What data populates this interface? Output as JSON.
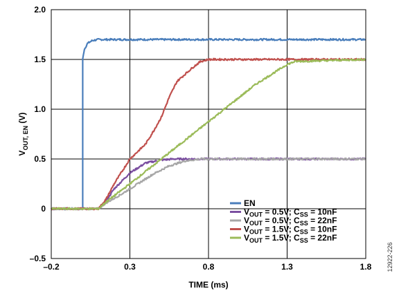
{
  "chart_data": {
    "type": "line",
    "xlabel": "TIME (ms)",
    "ylabel": {
      "base": "V",
      "sub": "OUT, EN",
      "unit": " (V)"
    },
    "xlim": [
      -0.2,
      1.8
    ],
    "ylim": [
      -0.5,
      2.0
    ],
    "x_ticks": [
      -0.2,
      0.3,
      0.8,
      1.3,
      1.8
    ],
    "x_tick_labels": [
      "–0.2",
      "0.3",
      "0.8",
      "1.3",
      "1.8"
    ],
    "y_ticks": [
      -0.5,
      0,
      0.5,
      1.0,
      1.5,
      2.0
    ],
    "y_tick_labels": [
      "–0.5",
      "0",
      "0.5",
      "1.0",
      "1.5",
      "2.0"
    ],
    "grid": true,
    "legend_position": "lower-right",
    "series": [
      {
        "name": "EN",
        "color": "#4a7ebb",
        "x": [
          -0.2,
          0.0,
          0.0,
          0.01,
          0.03,
          0.06,
          0.1,
          1.8
        ],
        "y": [
          0.0,
          0.0,
          1.5,
          1.6,
          1.66,
          1.69,
          1.7,
          1.7
        ]
      },
      {
        "name": "VOUT = 0.5V; CSS = 10nF",
        "color": "#7b4fa0",
        "x": [
          -0.2,
          0.1,
          0.15,
          0.2,
          0.3,
          0.4,
          0.5,
          0.58,
          0.65,
          1.8
        ],
        "y": [
          0.0,
          0.0,
          0.08,
          0.2,
          0.36,
          0.46,
          0.49,
          0.5,
          0.5,
          0.5
        ]
      },
      {
        "name": "VOUT = 0.5V; CSS = 22nF",
        "color": "#a6a6a6",
        "x": [
          -0.2,
          0.1,
          0.15,
          0.25,
          0.35,
          0.45,
          0.55,
          0.65,
          0.75,
          1.8
        ],
        "y": [
          0.0,
          0.0,
          0.06,
          0.15,
          0.25,
          0.35,
          0.43,
          0.48,
          0.5,
          0.5
        ]
      },
      {
        "name": "VOUT = 1.5V; CSS = 10nF",
        "color": "#c0504d",
        "x": [
          -0.2,
          0.1,
          0.15,
          0.2,
          0.3,
          0.4,
          0.45,
          0.5,
          0.55,
          0.6,
          0.7,
          0.75,
          0.8,
          1.8
        ],
        "y": [
          0.0,
          0.0,
          0.1,
          0.25,
          0.5,
          0.65,
          0.78,
          0.92,
          1.12,
          1.28,
          1.42,
          1.48,
          1.5,
          1.5
        ]
      },
      {
        "name": "VOUT = 1.5V; CSS = 22nF",
        "color": "#9bbb59",
        "x": [
          -0.2,
          0.1,
          0.15,
          0.3,
          0.5,
          0.7,
          0.9,
          1.1,
          1.3,
          1.35,
          1.8
        ],
        "y": [
          0.0,
          0.0,
          0.07,
          0.25,
          0.5,
          0.75,
          1.0,
          1.25,
          1.45,
          1.48,
          1.5
        ]
      }
    ],
    "legend_labels": [
      {
        "base": "EN"
      },
      {
        "v": "V",
        "vsub": "OUT",
        "mid": " = 0.5V; C",
        "csub": "SS",
        "tail": " = 10nF"
      },
      {
        "v": "V",
        "vsub": "OUT",
        "mid": " = 0.5V; C",
        "csub": "SS",
        "tail": " = 22nF"
      },
      {
        "v": "V",
        "vsub": "OUT",
        "mid": " = 1.5V; C",
        "csub": "SS",
        "tail": " = 10nF"
      },
      {
        "v": "V",
        "vsub": "OUT",
        "mid": " = 1.5V; C",
        "csub": "SS",
        "tail": " = 22nF"
      }
    ]
  },
  "figure_id": "12922-226"
}
